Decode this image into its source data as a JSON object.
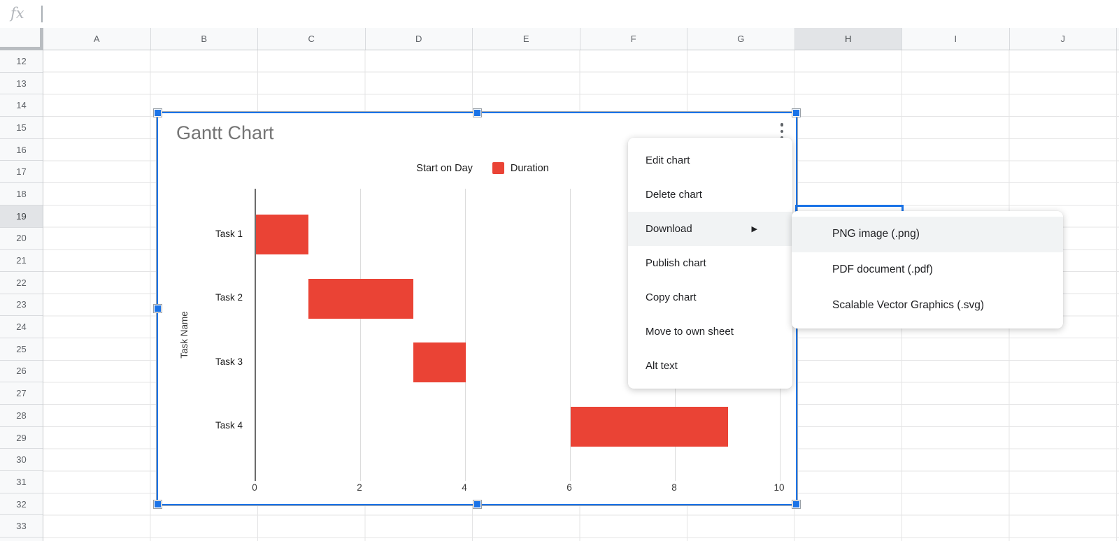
{
  "colors": {
    "accent_blue": "#1a73e8",
    "bar_red": "#ea4335",
    "menu_hover": "#f1f3f4",
    "header_bg": "#f8f9fa",
    "header_active_bg": "#e2e4e7"
  },
  "formula_bar": {
    "fx_label": "fx",
    "input_value": ""
  },
  "column_headers": [
    "A",
    "B",
    "C",
    "D",
    "E",
    "F",
    "G",
    "H",
    "I",
    "J"
  ],
  "active_column": "H",
  "row_headers": [
    "12",
    "13",
    "14",
    "15",
    "16",
    "17",
    "18",
    "19",
    "20",
    "21",
    "22",
    "23",
    "24",
    "25",
    "26",
    "27",
    "28",
    "29",
    "30",
    "31",
    "32",
    "33"
  ],
  "active_row": "19",
  "active_cell": "H19",
  "chart_data": {
    "type": "bar",
    "orientation": "horizontal",
    "title": "Gantt Chart",
    "y_axis_title": "Task Name",
    "categories": [
      "Task 1",
      "Task 2",
      "Task 3",
      "Task 4"
    ],
    "series": [
      {
        "name": "Start on Day",
        "color": "transparent",
        "values": [
          0,
          1,
          3,
          6
        ]
      },
      {
        "name": "Duration",
        "color": "#ea4335",
        "values": [
          1,
          2,
          1,
          3
        ]
      }
    ],
    "x_ticks": [
      "0",
      "2",
      "4",
      "6",
      "8",
      "10"
    ],
    "xlim": [
      0,
      10.3
    ],
    "grid": "vertical-only",
    "legend_position": "top-center"
  },
  "chart_menu": {
    "kebab_icon": "vertical-three-dots",
    "items": [
      {
        "label": "Edit chart"
      },
      {
        "label": "Delete chart"
      },
      {
        "label": "Download",
        "has_submenu": true,
        "hovered": true
      },
      {
        "label": "Publish chart"
      },
      {
        "label": "Copy chart"
      },
      {
        "label": "Move to own sheet"
      },
      {
        "label": "Alt text"
      }
    ],
    "submenu_arrow": "▶"
  },
  "download_submenu": {
    "items": [
      {
        "label": "PNG image (.png)",
        "hovered": true
      },
      {
        "label": "PDF document (.pdf)"
      },
      {
        "label": "Scalable Vector Graphics (.svg)"
      }
    ]
  }
}
